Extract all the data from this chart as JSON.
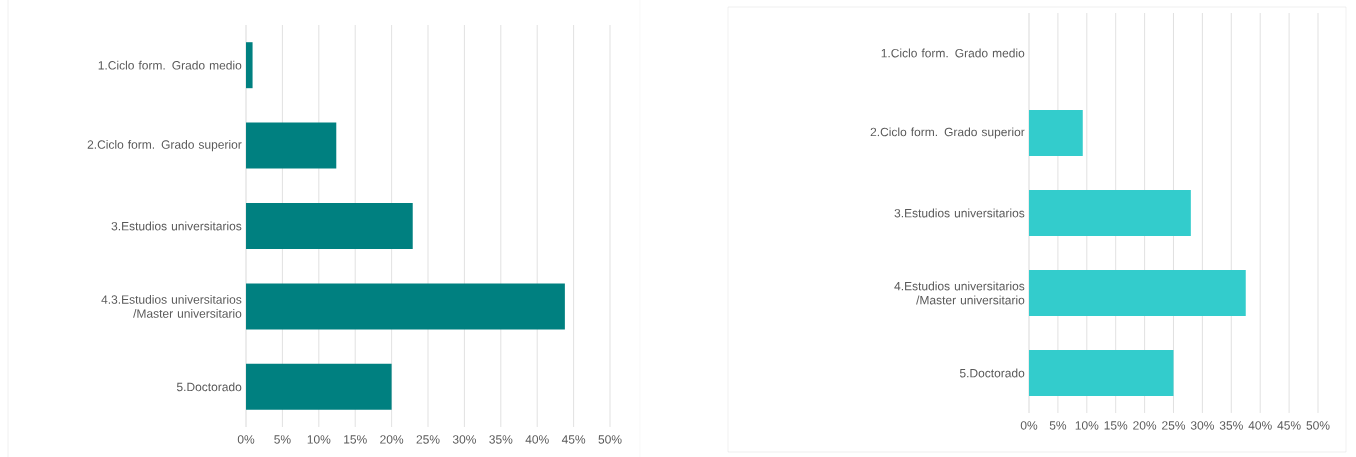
{
  "chart_data": [
    {
      "type": "bar",
      "orientation": "horizontal",
      "categories": [
        "1.Ciclo form. Grado medio",
        "2.Ciclo form. Grado superior",
        "3.Estudios universitarios",
        "4.3.Estudios universitarios /Master universitario",
        "5.Doctorado"
      ],
      "values": [
        0.9,
        12.4,
        22.9,
        43.8,
        20.0
      ],
      "color": "#008080",
      "xlim": [
        0,
        50
      ],
      "xticks": [
        {
          "value": 0,
          "label": "0%"
        },
        {
          "value": 5,
          "label": "5%"
        },
        {
          "value": 10,
          "label": "10%"
        },
        {
          "value": 15,
          "label": "15%"
        },
        {
          "value": 20,
          "label": "20%"
        },
        {
          "value": 25,
          "label": "25%"
        },
        {
          "value": 30,
          "label": "30%"
        },
        {
          "value": 35,
          "label": "35%"
        },
        {
          "value": 40,
          "label": "40%"
        },
        {
          "value": 45,
          "label": "45%"
        },
        {
          "value": 50,
          "label": "50%"
        }
      ],
      "grid": "x"
    },
    {
      "type": "bar",
      "orientation": "horizontal",
      "categories": [
        "1.Ciclo form. Grado medio",
        "2.Ciclo form. Grado superior",
        "3.Estudios universitarios",
        "4.Estudios universitarios /Master universitario",
        "5.Doctorado"
      ],
      "values": [
        0,
        9.3,
        28.0,
        37.5,
        25.0
      ],
      "color": "#33cccc",
      "xlim": [
        0,
        50
      ],
      "xticks": [
        {
          "value": 0,
          "label": "0%"
        },
        {
          "value": 5,
          "label": "5%"
        },
        {
          "value": 10,
          "label": "10%"
        },
        {
          "value": 15,
          "label": "15%"
        },
        {
          "value": 20,
          "label": "20%"
        },
        {
          "value": 25,
          "label": "25%"
        },
        {
          "value": 30,
          "label": "30%"
        },
        {
          "value": 35,
          "label": "35%"
        },
        {
          "value": 40,
          "label": "40%"
        },
        {
          "value": 45,
          "label": "45%"
        },
        {
          "value": 50,
          "label": "50%"
        }
      ],
      "grid": "x"
    }
  ]
}
